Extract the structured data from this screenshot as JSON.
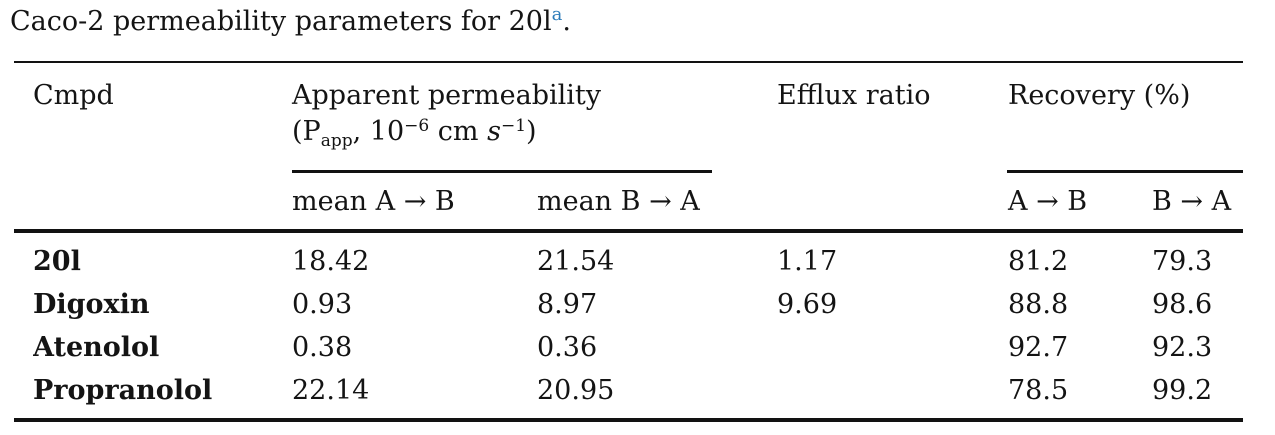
{
  "caption": {
    "text": "Caco-2 permeability parameters for 20l",
    "footnote_marker": "a",
    "period": "."
  },
  "table": {
    "header": {
      "cmpd": "Cmpd",
      "apparent_permeability": "Apparent permeability",
      "papp_units": {
        "open": "(P",
        "sub": "app",
        "mid1": ", 10",
        "sup1": "−6",
        "mid2": " cm ",
        "unit_s": "s",
        "sup2": "−1",
        "close": ")"
      },
      "efflux_ratio": "Efflux ratio",
      "recovery": "Recovery (%)"
    },
    "subheader": {
      "mean_a_b": "mean A → B",
      "mean_b_a": "mean B → A",
      "a_b": "A → B",
      "b_a": "B → A"
    },
    "rows": [
      {
        "cmpd": "20l",
        "papp_ab": "18.42",
        "papp_ba": "21.54",
        "efflux": "1.17",
        "rec_ab": "81.2",
        "rec_ba": "79.3"
      },
      {
        "cmpd": "Digoxin",
        "papp_ab": "0.93",
        "papp_ba": "8.97",
        "efflux": "9.69",
        "rec_ab": "88.8",
        "rec_ba": "98.6"
      },
      {
        "cmpd": "Atenolol",
        "papp_ab": "0.38",
        "papp_ba": "0.36",
        "efflux": "",
        "rec_ab": "92.7",
        "rec_ba": "92.3"
      },
      {
        "cmpd": "Propranolol",
        "papp_ab": "22.14",
        "papp_ba": "20.95",
        "efflux": "",
        "rec_ab": "78.5",
        "rec_ba": "99.2"
      }
    ]
  },
  "colors": {
    "footnote": "#2b7bb9",
    "text": "#141414",
    "rule": "#121212",
    "background": "#ffffff"
  }
}
